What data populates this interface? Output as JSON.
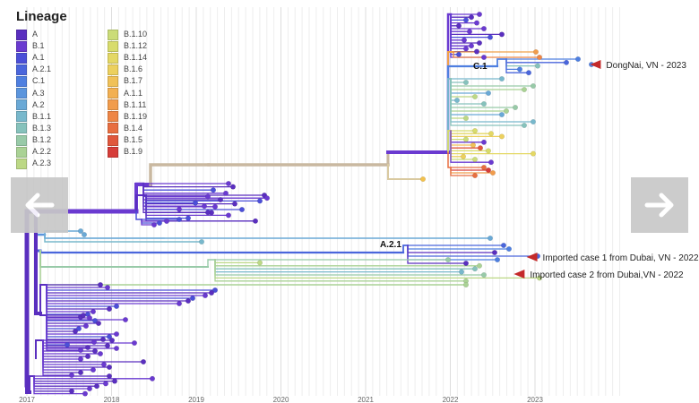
{
  "chart_data": {
    "type": "phylogenetic-tree",
    "legend": {
      "title": "Lineage",
      "items": [
        {
          "name": "A",
          "color": "#5a2fbf"
        },
        {
          "name": "B.1",
          "color": "#6a3ad0"
        },
        {
          "name": "A.1",
          "color": "#4b4fd8"
        },
        {
          "name": "A.2.1",
          "color": "#4a66dc"
        },
        {
          "name": "C.1",
          "color": "#4e7fe0"
        },
        {
          "name": "A.3",
          "color": "#5b95dd"
        },
        {
          "name": "A.2",
          "color": "#6aa9d6"
        },
        {
          "name": "B.1.1",
          "color": "#78b8cc"
        },
        {
          "name": "B.1.3",
          "color": "#86c2bc"
        },
        {
          "name": "B.1.2",
          "color": "#98caa8"
        },
        {
          "name": "A.2.2",
          "color": "#aad295"
        },
        {
          "name": "A.2.3",
          "color": "#bcd885"
        },
        {
          "name": "B.1.10",
          "color": "#cbdc78"
        },
        {
          "name": "B.1.12",
          "color": "#d8dc6c"
        },
        {
          "name": "B.1.14",
          "color": "#e4d864"
        },
        {
          "name": "B.1.6",
          "color": "#ecd05e"
        },
        {
          "name": "B.1.7",
          "color": "#f0c158"
        },
        {
          "name": "A.1.1",
          "color": "#f2b052"
        },
        {
          "name": "B.1.11",
          "color": "#f19c4c"
        },
        {
          "name": "B.1.19",
          "color": "#ee8646"
        },
        {
          "name": "B.1.4",
          "color": "#e86e40"
        },
        {
          "name": "B.1.5",
          "color": "#e0573c"
        },
        {
          "name": "B.1.9",
          "color": "#d63d39"
        }
      ]
    },
    "x_axis": {
      "ticks": [
        "2017",
        "2018",
        "2019",
        "2020",
        "2021",
        "2022",
        "2023"
      ],
      "range": [
        2017,
        2023.9
      ]
    },
    "clade_labels": [
      "C.1",
      "A.2.1"
    ],
    "annotations": [
      {
        "text": "DongNai, VN - 2023",
        "x": 2023.65
      },
      {
        "text": "Imported case 1 from Dubai, VN - 2022",
        "x": 2022.9
      },
      {
        "text": "Imported case 2 from Dubai,VN - 2022",
        "x": 2022.75
      }
    ],
    "grid": true,
    "legend_position": "top-left"
  },
  "ui": {
    "prev_icon": "arrow-left-icon",
    "next_icon": "arrow-right-icon",
    "arrow_color": "#c42a2a"
  }
}
